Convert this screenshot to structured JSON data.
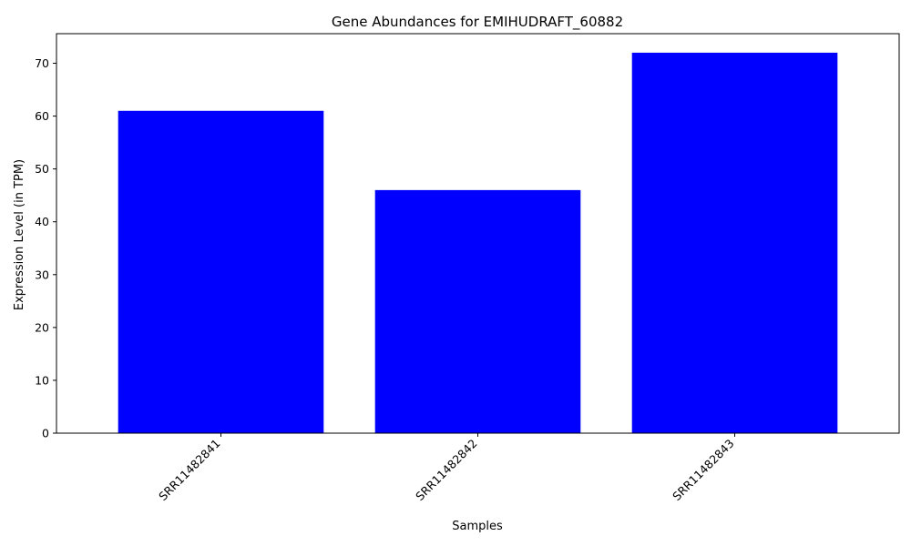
{
  "chart_data": {
    "type": "bar",
    "title": "Gene Abundances for EMIHUDRAFT_60882",
    "xlabel": "Samples",
    "ylabel": "Expression Level (in TPM)",
    "categories": [
      "SRR11482841",
      "SRR11482842",
      "SRR11482843"
    ],
    "values": [
      61,
      46,
      72
    ],
    "ylim": [
      0,
      75.6
    ],
    "yticks": [
      0,
      10,
      20,
      30,
      40,
      50,
      60,
      70
    ],
    "bar_color": "#0000ff",
    "grid": false
  }
}
